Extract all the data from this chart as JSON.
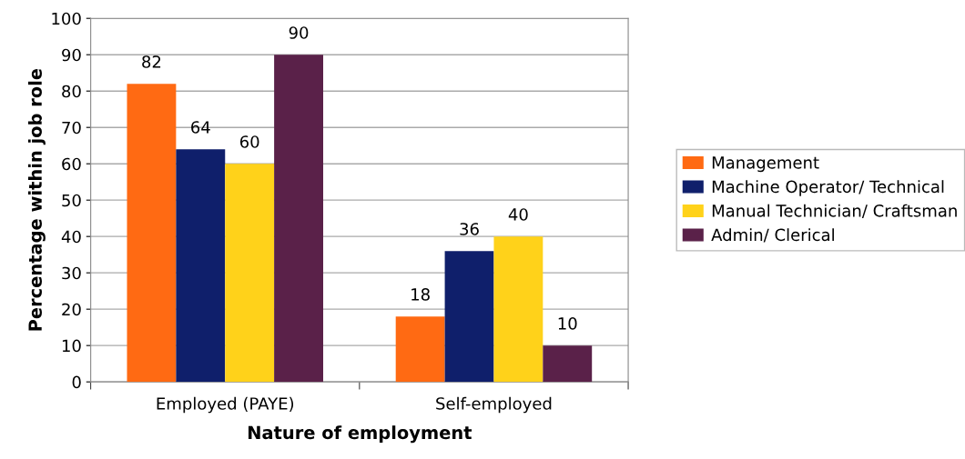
{
  "chart_data": {
    "type": "bar",
    "xlabel": "Nature of employment",
    "ylabel": "Percentage within job role",
    "categories": [
      "Employed (PAYE)",
      "Self-employed"
    ],
    "series": [
      {
        "name": "Management",
        "color": "#ff6a13",
        "values": [
          82,
          18
        ]
      },
      {
        "name": "Machine Operator/ Technical",
        "color": "#0f1f6b",
        "values": [
          64,
          36
        ]
      },
      {
        "name": "Manual Technician/ Craftsman",
        "color": "#ffd21a",
        "values": [
          60,
          40
        ]
      },
      {
        "name": "Admin/ Clerical",
        "color": "#5a2149",
        "values": [
          90,
          10
        ]
      }
    ],
    "ylim": [
      0,
      100
    ],
    "yticks": [
      0,
      10,
      20,
      30,
      40,
      50,
      60,
      70,
      80,
      90,
      100
    ],
    "grid": "y",
    "legend": "right",
    "data_labels": true
  }
}
